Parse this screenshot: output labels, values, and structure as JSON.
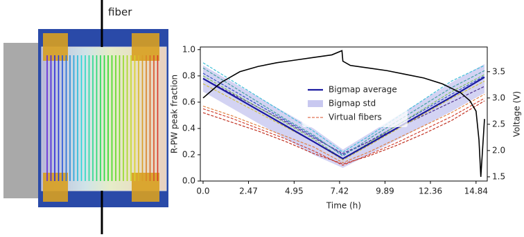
{
  "photo_label": "fiber",
  "chart_data": {
    "type": "line",
    "x_label": "Time (h)",
    "y_label": "R-PW peak fraction",
    "y2_label": "Voltage (V)",
    "xlim": [
      -0.15,
      15.45
    ],
    "xticks": [
      {
        "value": 0,
        "label": "0.0"
      },
      2.47,
      4.95,
      7.42,
      9.89,
      12.36,
      14.84
    ],
    "ylim": [
      0,
      1.02
    ],
    "yticks": [
      {
        "value": 0,
        "label": "0.0"
      },
      0.2,
      0.4,
      0.6,
      0.8,
      {
        "value": 1,
        "label": "1.0"
      }
    ],
    "y2lim": [
      1.42,
      3.97
    ],
    "y2ticks": [
      1.5,
      {
        "value": 2,
        "label": "2.0"
      },
      2.5,
      {
        "value": 3,
        "label": "3.0"
      },
      3.5
    ],
    "legend": "center",
    "x": [
      0,
      1.5,
      3,
      4.5,
      6,
      7.6,
      9,
      10.5,
      12,
      13.5,
      15.3
    ],
    "band": {
      "name": "Bigmap std",
      "color": "#c8c8f0",
      "upper": [
        0.88,
        0.76,
        0.64,
        0.52,
        0.4,
        0.24,
        0.36,
        0.49,
        0.62,
        0.75,
        0.89
      ],
      "lower": [
        0.68,
        0.56,
        0.44,
        0.32,
        0.2,
        0.1,
        0.2,
        0.31,
        0.42,
        0.53,
        0.67
      ]
    },
    "fibers": {
      "name": "Virtual fibers",
      "color": "#e07050",
      "lines": [
        {
          "color": "#40c0d8",
          "values": [
            0.9,
            0.77,
            0.64,
            0.51,
            0.38,
            0.22,
            0.34,
            0.48,
            0.62,
            0.76,
            0.88
          ]
        },
        {
          "color": "#3050c0",
          "values": [
            0.82,
            0.7,
            0.58,
            0.46,
            0.34,
            0.2,
            0.3,
            0.42,
            0.54,
            0.66,
            0.8
          ]
        },
        {
          "color": "#503090",
          "values": [
            0.78,
            0.67,
            0.56,
            0.45,
            0.33,
            0.21,
            0.3,
            0.4,
            0.5,
            0.6,
            0.72
          ]
        },
        {
          "color": "#40a0a0",
          "values": [
            0.86,
            0.73,
            0.6,
            0.47,
            0.35,
            0.19,
            0.32,
            0.45,
            0.58,
            0.71,
            0.84
          ]
        },
        {
          "color": "#80c060",
          "values": [
            0.8,
            0.68,
            0.56,
            0.44,
            0.32,
            0.17,
            0.29,
            0.42,
            0.55,
            0.68,
            0.81
          ]
        },
        {
          "color": "#d0c040",
          "values": [
            0.74,
            0.63,
            0.52,
            0.41,
            0.3,
            0.16,
            0.27,
            0.39,
            0.51,
            0.63,
            0.76
          ]
        },
        {
          "color": "#e08040",
          "values": [
            0.57,
            0.5,
            0.42,
            0.34,
            0.26,
            0.14,
            0.22,
            0.32,
            0.42,
            0.52,
            0.66
          ]
        },
        {
          "color": "#d04030",
          "values": [
            0.55,
            0.48,
            0.4,
            0.32,
            0.23,
            0.12,
            0.2,
            0.29,
            0.39,
            0.49,
            0.63
          ]
        },
        {
          "color": "#c03020",
          "values": [
            0.52,
            0.45,
            0.38,
            0.3,
            0.21,
            0.13,
            0.19,
            0.27,
            0.36,
            0.46,
            0.61
          ]
        }
      ]
    },
    "series": [
      {
        "name": "Bigmap average",
        "color": "#1a1aa0",
        "values": [
          0.78,
          0.66,
          0.54,
          0.42,
          0.3,
          0.17,
          0.28,
          0.4,
          0.52,
          0.64,
          0.79
        ]
      }
    ],
    "voltage": {
      "axis": "y2",
      "color": "#000000",
      "x": [
        0,
        0.5,
        1,
        2,
        3,
        4,
        5,
        6,
        7,
        7.55,
        7.6,
        8,
        9,
        10,
        11,
        12,
        13,
        14,
        14.5,
        14.84,
        15.0,
        15.1,
        15.3
      ],
      "values": [
        3.0,
        3.15,
        3.3,
        3.5,
        3.6,
        3.67,
        3.72,
        3.77,
        3.82,
        3.9,
        3.7,
        3.62,
        3.57,
        3.52,
        3.45,
        3.38,
        3.27,
        3.1,
        2.95,
        2.75,
        2.2,
        1.5,
        2.6
      ]
    }
  }
}
